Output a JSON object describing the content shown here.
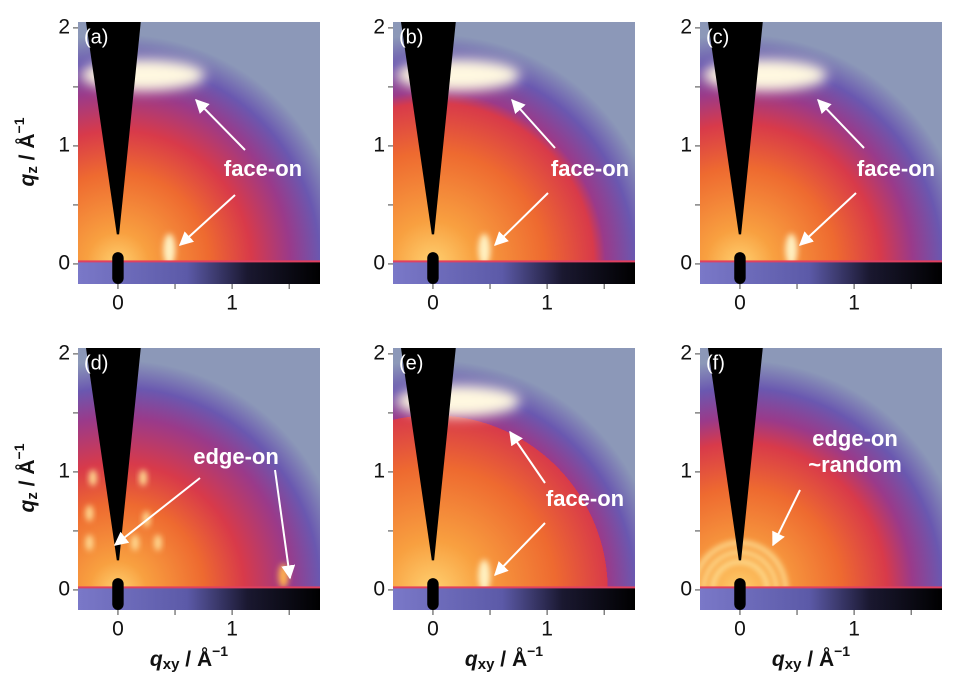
{
  "chart_data": [
    {
      "type": "image",
      "panel_label": "(a)",
      "xlim": [
        -0.35,
        1.77
      ],
      "ylim": [
        -0.17,
        2.05
      ],
      "xticks": [
        0,
        1
      ],
      "yticks": [
        0,
        1,
        2
      ],
      "xminor_ticks": [
        0.5,
        1.5
      ],
      "yminor_ticks": [
        0.5,
        1.5
      ],
      "annotations": [
        "face-on"
      ],
      "ylabel": {
        "main": "q",
        "sub": "z",
        "rest": " / Å",
        "sup": "−1"
      }
    },
    {
      "type": "image",
      "panel_label": "(b)",
      "xlim": [
        -0.35,
        1.77
      ],
      "ylim": [
        -0.17,
        2.05
      ],
      "xticks": [
        0,
        1
      ],
      "yticks": [
        0,
        1,
        2
      ],
      "xminor_ticks": [
        0.5,
        1.5
      ],
      "yminor_ticks": [
        0.5,
        1.5
      ],
      "annotations": [
        "face-on"
      ]
    },
    {
      "type": "image",
      "panel_label": "(c)",
      "xlim": [
        -0.35,
        1.77
      ],
      "ylim": [
        -0.17,
        2.05
      ],
      "xticks": [
        0,
        1
      ],
      "yticks": [
        0,
        1,
        2
      ],
      "xminor_ticks": [
        0.5,
        1.5
      ],
      "yminor_ticks": [
        0.5,
        1.5
      ],
      "annotations": [
        "face-on"
      ]
    },
    {
      "type": "image",
      "panel_label": "(d)",
      "xlim": [
        -0.35,
        1.77
      ],
      "ylim": [
        -0.17,
        2.05
      ],
      "xticks": [
        0,
        1
      ],
      "yticks": [
        0,
        1,
        2
      ],
      "xminor_ticks": [
        0.5,
        1.5
      ],
      "yminor_ticks": [
        0.5,
        1.5
      ],
      "annotations": [
        "edge-on"
      ],
      "ylabel": {
        "main": "q",
        "sub": "z",
        "rest": " / Å",
        "sup": "−1"
      },
      "xlabel": {
        "main": "q",
        "sub": "xy",
        "rest": " / Å",
        "sup": "−1"
      }
    },
    {
      "type": "image",
      "panel_label": "(e)",
      "xlim": [
        -0.35,
        1.77
      ],
      "ylim": [
        -0.17,
        2.05
      ],
      "xticks": [
        0,
        1
      ],
      "yticks": [
        0,
        1,
        2
      ],
      "xminor_ticks": [
        0.5,
        1.5
      ],
      "yminor_ticks": [
        0.5,
        1.5
      ],
      "annotations": [
        "face-on"
      ],
      "xlabel": {
        "main": "q",
        "sub": "xy",
        "rest": " / Å",
        "sup": "−1"
      }
    },
    {
      "type": "image",
      "panel_label": "(f)",
      "xlim": [
        -0.35,
        1.77
      ],
      "ylim": [
        -0.17,
        2.05
      ],
      "xticks": [
        0,
        1
      ],
      "yticks": [
        0,
        1,
        2
      ],
      "xminor_ticks": [
        0.5,
        1.5
      ],
      "yminor_ticks": [
        0.5,
        1.5
      ],
      "annotations": [
        "edge-on",
        "~random"
      ],
      "xlabel": {
        "main": "q",
        "sub": "xy",
        "rest": " / Å",
        "sup": "−1"
      }
    }
  ]
}
